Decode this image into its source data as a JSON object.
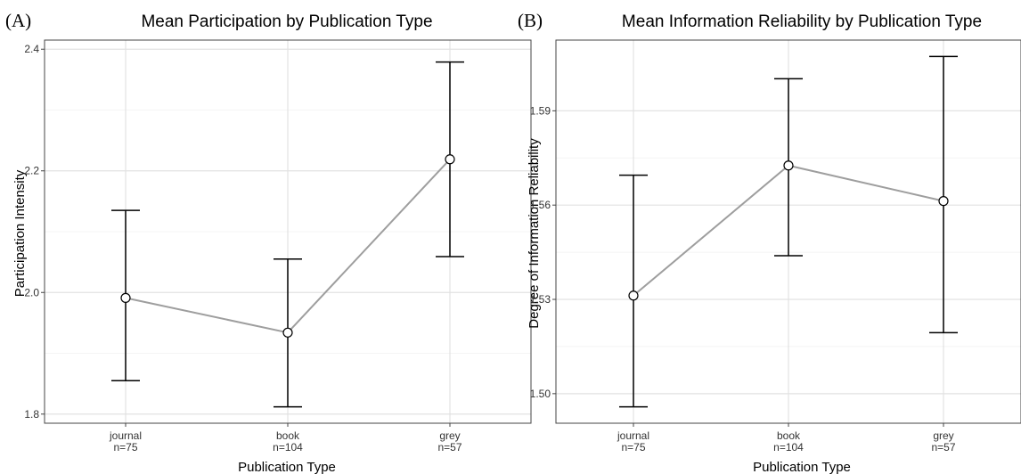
{
  "chart_data": [
    {
      "type": "line",
      "panel_tag": "(A)",
      "title": "Mean Participation by Publication Type",
      "xlabel": "Publication Type",
      "ylabel": "Participation Intensity",
      "categories": [
        "journal",
        "book",
        "grey"
      ],
      "sample_sizes": [
        "n=75",
        "n=104",
        "n=57"
      ],
      "values": [
        1.991,
        1.934,
        2.219
      ],
      "ci_lower": [
        1.855,
        1.812,
        2.059
      ],
      "ci_upper": [
        2.135,
        2.055,
        2.379
      ],
      "ylim": [
        1.785,
        2.415
      ],
      "yticks": [
        1.8,
        2.0,
        2.2,
        2.4
      ],
      "ytick_labels": [
        "1.8",
        "2.0",
        "2.2",
        "2.4"
      ],
      "grid": true
    },
    {
      "type": "line",
      "panel_tag": "(B)",
      "title": "Mean Information Reliability by Publication Type",
      "xlabel": "Publication Type",
      "ylabel": "Degree of Information Reliability",
      "categories": [
        "journal",
        "book",
        "grey"
      ],
      "sample_sizes": [
        "n=75",
        "n=104",
        "n=57"
      ],
      "values": [
        1.5312,
        1.5726,
        1.5613
      ],
      "ci_lower": [
        1.4958,
        1.5439,
        1.5194
      ],
      "ci_upper": [
        1.5695,
        1.6002,
        1.6073
      ],
      "ylim": [
        1.4906,
        1.6125
      ],
      "yticks": [
        1.5,
        1.53,
        1.56,
        1.59
      ],
      "ytick_labels": [
        "1.50",
        "1.53",
        "1.56",
        "1.59"
      ],
      "grid": true
    }
  ],
  "colors": {
    "line": "#9e9e9e",
    "point_fill": "#ffffff",
    "error_bar": "#000000",
    "grid": "#e2e2e2"
  }
}
